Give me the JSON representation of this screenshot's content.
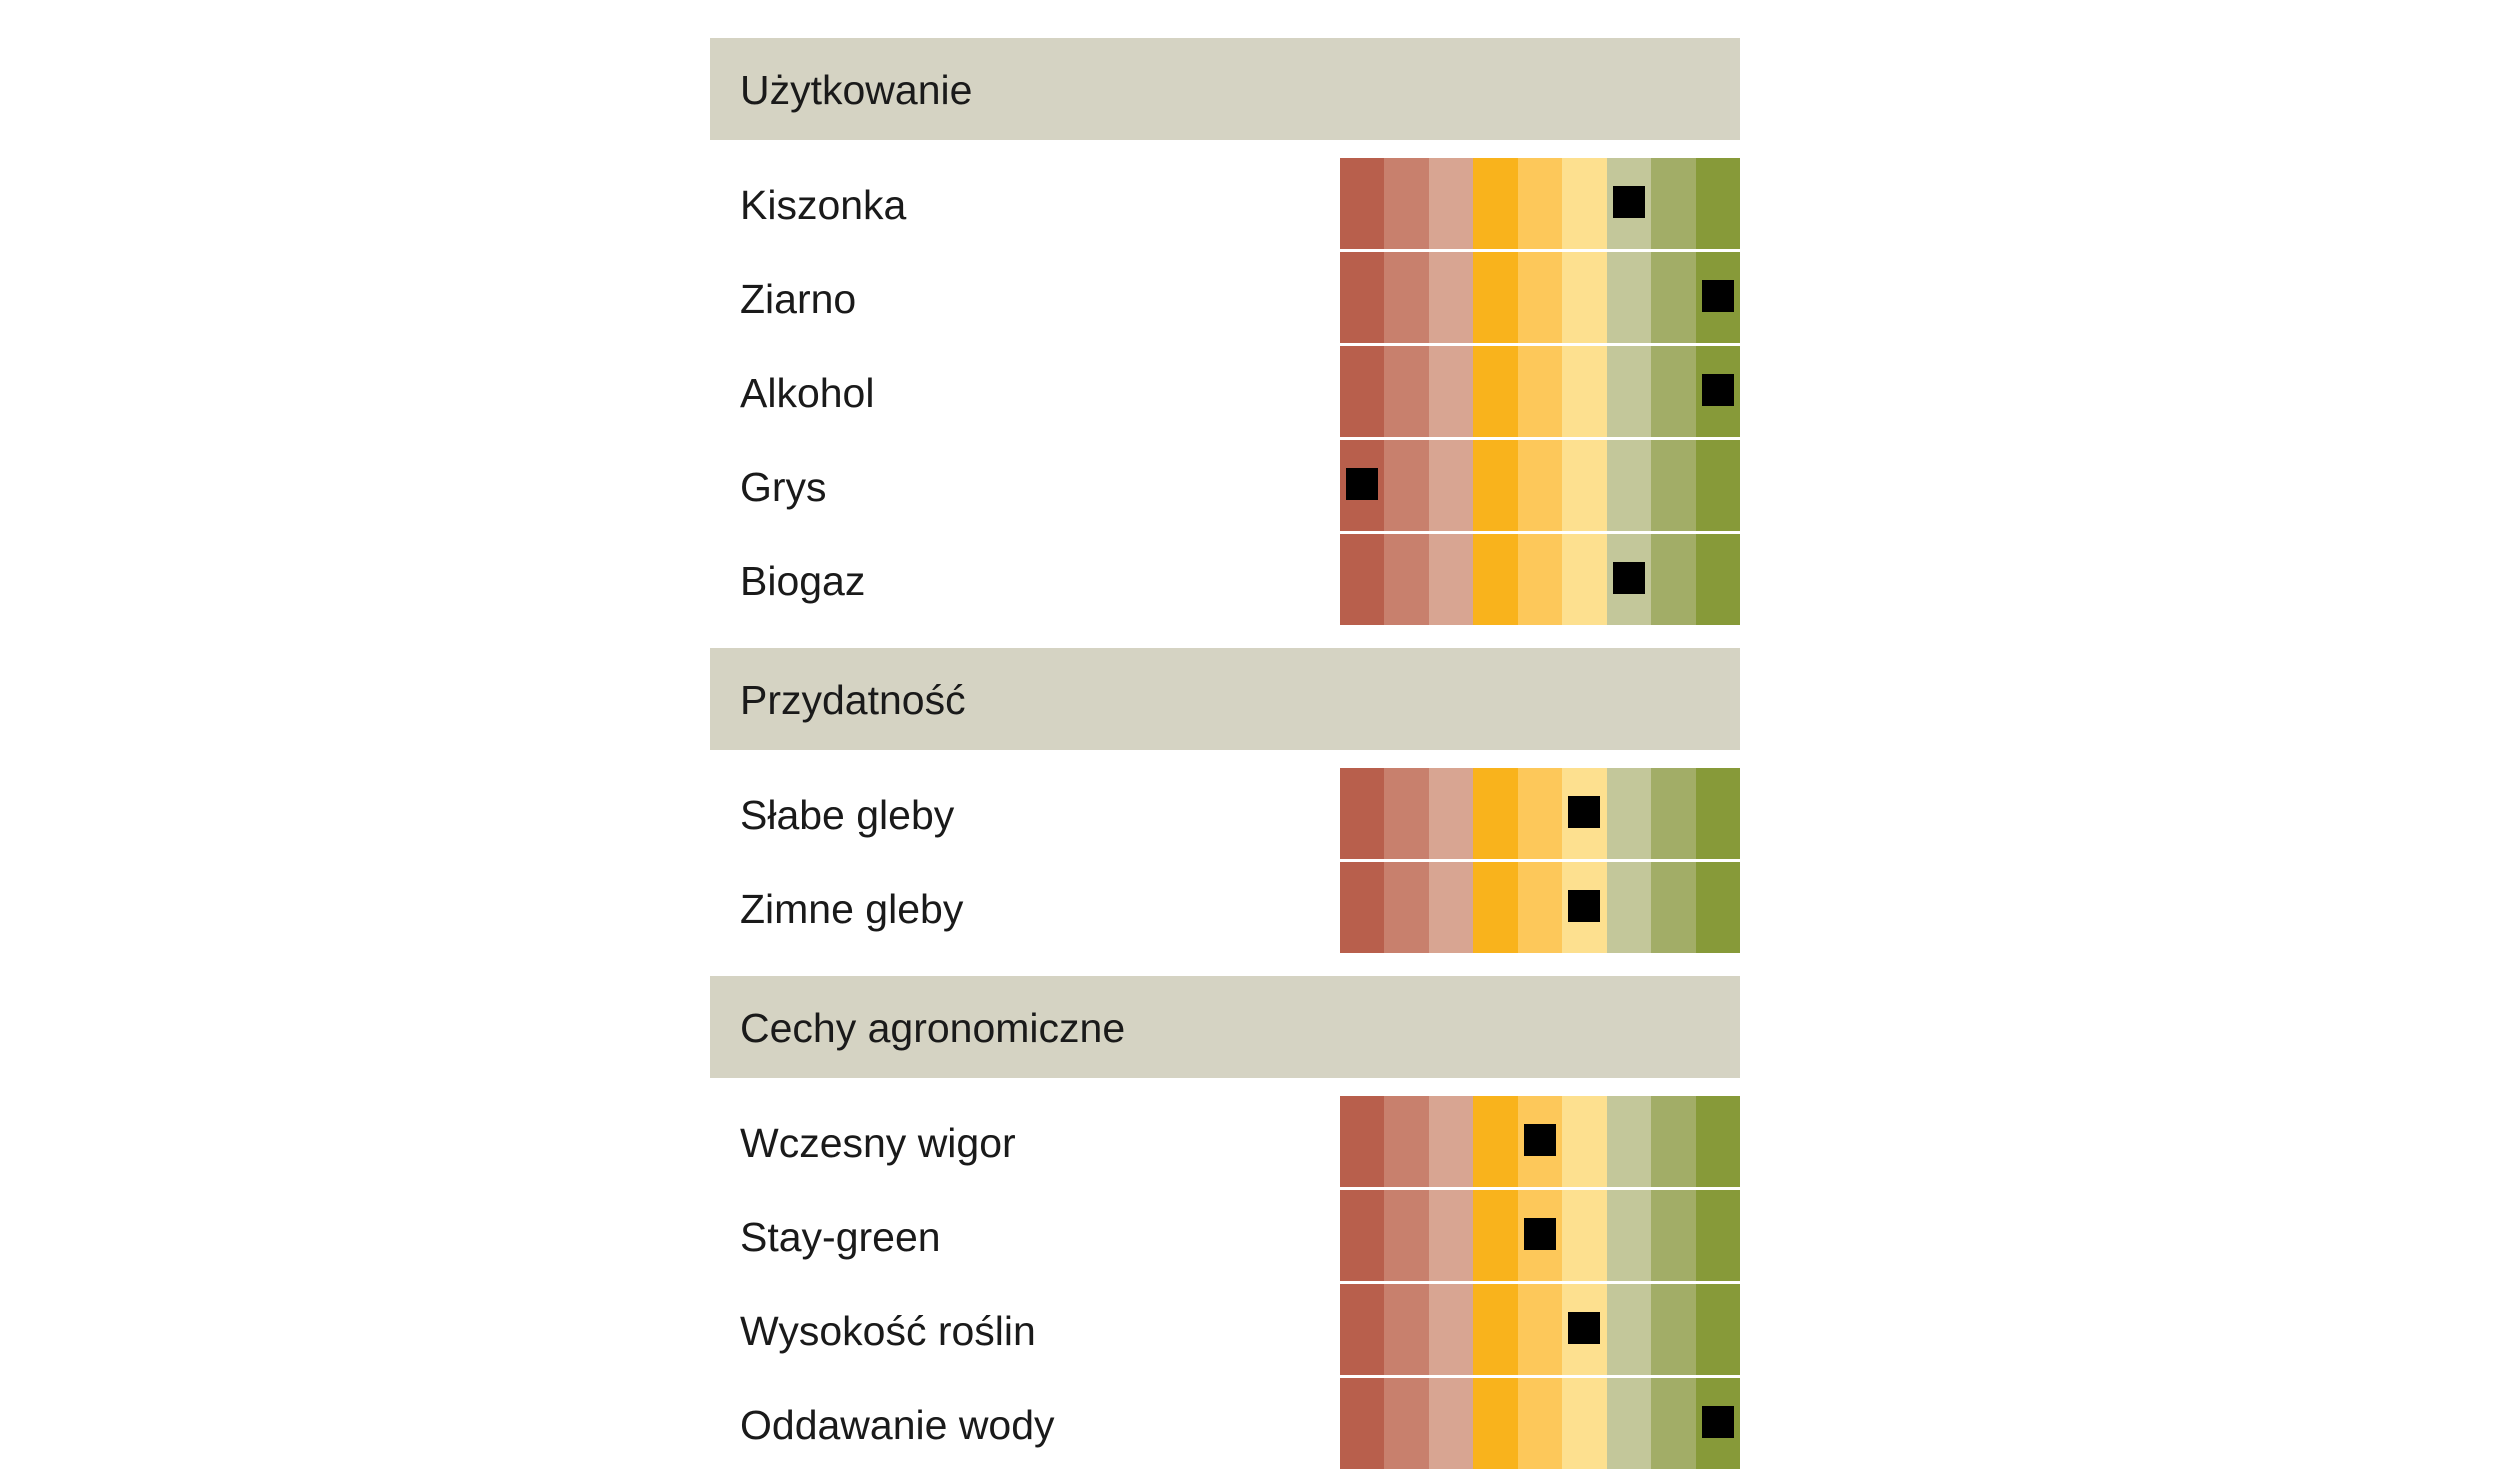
{
  "chart_data": {
    "type": "table",
    "scale_levels": 9,
    "scale_colors": [
      "#b85f4c",
      "#c8806d",
      "#d8a592",
      "#f9b31c",
      "#fdc85a",
      "#fde08f",
      "#c3c79a",
      "#a2ad67",
      "#879a39"
    ],
    "marker_color": "#000000",
    "sections": [
      {
        "title": "Użytkowanie",
        "rows": [
          {
            "label": "Kiszonka",
            "value": 7
          },
          {
            "label": "Ziarno",
            "value": 9
          },
          {
            "label": "Alkohol",
            "value": 9
          },
          {
            "label": "Grys",
            "value": 1
          },
          {
            "label": "Biogaz",
            "value": 7
          }
        ]
      },
      {
        "title": "Przydatność",
        "rows": [
          {
            "label": "Słabe gleby",
            "value": 6
          },
          {
            "label": "Zimne gleby",
            "value": 6
          }
        ]
      },
      {
        "title": "Cechy agronomiczne",
        "rows": [
          {
            "label": "Wczesny wigor",
            "value": 5
          },
          {
            "label": "Stay-green",
            "value": 5
          },
          {
            "label": "Wysokość roślin",
            "value": 6
          },
          {
            "label": "Oddawanie wody",
            "value": 9
          }
        ]
      }
    ]
  }
}
